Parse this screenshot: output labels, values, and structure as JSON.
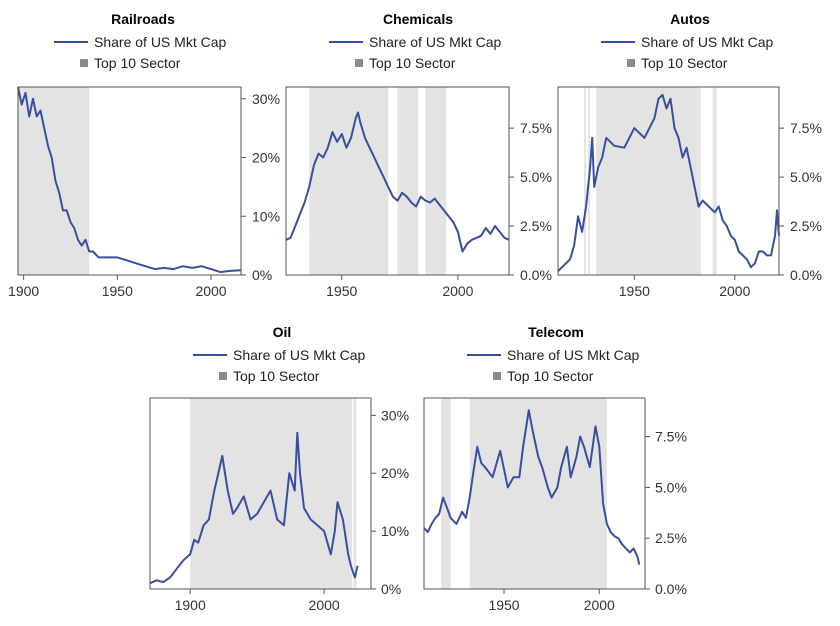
{
  "legend": {
    "line_label": "Share of US Mkt Cap",
    "shade_label": "Top 10 Sector"
  },
  "colors": {
    "line": "#3a4ea0",
    "shade": "#e3e3e3",
    "axis": "#555555",
    "text": "#222222"
  },
  "chart_data": [
    {
      "type": "line",
      "title": "Railroads",
      "xlabel": "",
      "ylabel": "",
      "xlim": [
        1897,
        2016
      ],
      "ylim": [
        0,
        0.32
      ],
      "x_ticks": [
        1900,
        1950,
        2000
      ],
      "y_ticks": [
        0,
        0.1,
        0.2,
        0.3
      ],
      "y_tick_labels": [
        "0%",
        "10%",
        "20%",
        "30%"
      ],
      "top10_periods": [
        [
          1897,
          1935
        ]
      ],
      "series": [
        {
          "name": "Share of US Mkt Cap",
          "x": [
            1897,
            1899,
            1901,
            1903,
            1905,
            1907,
            1909,
            1911,
            1913,
            1915,
            1917,
            1919,
            1921,
            1923,
            1925,
            1927,
            1929,
            1931,
            1933,
            1935,
            1937,
            1940,
            1945,
            1950,
            1955,
            1960,
            1965,
            1970,
            1975,
            1980,
            1985,
            1990,
            1995,
            2000,
            2005,
            2010,
            2016
          ],
          "y": [
            0.32,
            0.29,
            0.31,
            0.27,
            0.3,
            0.27,
            0.28,
            0.25,
            0.22,
            0.2,
            0.16,
            0.14,
            0.11,
            0.11,
            0.09,
            0.08,
            0.06,
            0.05,
            0.06,
            0.04,
            0.04,
            0.03,
            0.03,
            0.03,
            0.025,
            0.02,
            0.015,
            0.01,
            0.012,
            0.01,
            0.015,
            0.012,
            0.015,
            0.01,
            0.005,
            0.007,
            0.008
          ]
        }
      ]
    },
    {
      "type": "line",
      "title": "Chemicals",
      "xlabel": "",
      "ylabel": "",
      "xlim": [
        1926,
        2022
      ],
      "ylim": [
        0,
        0.096
      ],
      "x_ticks": [
        1950,
        2000
      ],
      "y_ticks": [
        0,
        0.025,
        0.05,
        0.075
      ],
      "y_tick_labels": [
        "0.0%",
        "2.5%",
        "5.0%",
        "7.5%"
      ],
      "top10_periods": [
        [
          1936,
          1970
        ],
        [
          1974,
          1983
        ],
        [
          1986,
          1995
        ]
      ],
      "series": [
        {
          "name": "Share of US Mkt Cap",
          "x": [
            1926,
            1928,
            1930,
            1932,
            1934,
            1936,
            1938,
            1940,
            1942,
            1944,
            1946,
            1948,
            1950,
            1952,
            1954,
            1956,
            1957,
            1958,
            1960,
            1962,
            1964,
            1966,
            1968,
            1970,
            1972,
            1974,
            1976,
            1978,
            1980,
            1982,
            1984,
            1986,
            1988,
            1990,
            1992,
            1994,
            1996,
            1998,
            2000,
            2002,
            2004,
            2006,
            2008,
            2010,
            2012,
            2014,
            2016,
            2018,
            2020,
            2022
          ],
          "y": [
            0.018,
            0.019,
            0.025,
            0.031,
            0.037,
            0.045,
            0.056,
            0.062,
            0.06,
            0.065,
            0.073,
            0.068,
            0.072,
            0.065,
            0.07,
            0.08,
            0.083,
            0.078,
            0.07,
            0.065,
            0.06,
            0.055,
            0.05,
            0.045,
            0.04,
            0.038,
            0.042,
            0.04,
            0.037,
            0.035,
            0.04,
            0.038,
            0.037,
            0.039,
            0.036,
            0.033,
            0.03,
            0.027,
            0.022,
            0.012,
            0.016,
            0.018,
            0.019,
            0.02,
            0.024,
            0.021,
            0.025,
            0.022,
            0.019,
            0.018
          ]
        }
      ]
    },
    {
      "type": "line",
      "title": "Autos",
      "xlabel": "",
      "ylabel": "",
      "xlim": [
        1912,
        2022
      ],
      "ylim": [
        0,
        0.096
      ],
      "x_ticks": [
        1950,
        2000
      ],
      "y_ticks": [
        0,
        0.025,
        0.05,
        0.075
      ],
      "y_tick_labels": [
        "0.0%",
        "2.5%",
        "5.0%",
        "7.5%"
      ],
      "top10_periods": [
        [
          1925,
          1926
        ],
        [
          1927,
          1928
        ],
        [
          1931,
          1983
        ],
        [
          1989,
          1991
        ]
      ],
      "series": [
        {
          "name": "Share of US Mkt Cap",
          "x": [
            1912,
            1914,
            1916,
            1918,
            1920,
            1922,
            1924,
            1926,
            1928,
            1929,
            1930,
            1932,
            1934,
            1936,
            1940,
            1945,
            1950,
            1955,
            1960,
            1962,
            1964,
            1966,
            1968,
            1970,
            1972,
            1974,
            1976,
            1978,
            1980,
            1982,
            1984,
            1986,
            1988,
            1990,
            1992,
            1994,
            1996,
            1998,
            2000,
            2002,
            2004,
            2006,
            2008,
            2010,
            2012,
            2014,
            2016,
            2018,
            2020,
            2021,
            2022
          ],
          "y": [
            0.002,
            0.004,
            0.006,
            0.008,
            0.015,
            0.03,
            0.022,
            0.035,
            0.055,
            0.07,
            0.045,
            0.055,
            0.06,
            0.07,
            0.066,
            0.065,
            0.075,
            0.07,
            0.08,
            0.09,
            0.092,
            0.085,
            0.09,
            0.075,
            0.07,
            0.06,
            0.065,
            0.055,
            0.045,
            0.035,
            0.038,
            0.036,
            0.034,
            0.032,
            0.035,
            0.028,
            0.025,
            0.02,
            0.018,
            0.012,
            0.01,
            0.008,
            0.004,
            0.006,
            0.012,
            0.012,
            0.01,
            0.01,
            0.02,
            0.033,
            0.02
          ]
        }
      ]
    },
    {
      "type": "line",
      "title": "Oil",
      "xlabel": "",
      "ylabel": "",
      "xlim": [
        1870,
        2035
      ],
      "ylim": [
        0,
        0.33
      ],
      "x_ticks": [
        1900,
        2000
      ],
      "y_ticks": [
        0,
        0.1,
        0.2,
        0.3
      ],
      "y_tick_labels": [
        "0%",
        "10%",
        "20%",
        "30%"
      ],
      "top10_periods": [
        [
          1900,
          2021
        ],
        [
          2022,
          2024
        ]
      ],
      "series": [
        {
          "name": "Share of US Mkt Cap",
          "x": [
            1870,
            1875,
            1880,
            1885,
            1890,
            1895,
            1900,
            1903,
            1906,
            1910,
            1914,
            1918,
            1920,
            1924,
            1928,
            1932,
            1935,
            1940,
            1945,
            1950,
            1955,
            1960,
            1965,
            1970,
            1974,
            1978,
            1980,
            1982,
            1985,
            1990,
            1995,
            2000,
            2005,
            2008,
            2010,
            2014,
            2018,
            2020,
            2023,
            2025
          ],
          "y": [
            0.01,
            0.015,
            0.012,
            0.02,
            0.035,
            0.05,
            0.06,
            0.085,
            0.08,
            0.11,
            0.12,
            0.17,
            0.19,
            0.23,
            0.17,
            0.13,
            0.14,
            0.16,
            0.12,
            0.13,
            0.15,
            0.17,
            0.12,
            0.11,
            0.2,
            0.17,
            0.27,
            0.2,
            0.14,
            0.12,
            0.11,
            0.1,
            0.06,
            0.1,
            0.15,
            0.12,
            0.06,
            0.04,
            0.02,
            0.04
          ]
        }
      ]
    },
    {
      "type": "line",
      "title": "Telecom",
      "xlabel": "",
      "ylabel": "",
      "xlim": [
        1908,
        2024
      ],
      "ylim": [
        0,
        0.094
      ],
      "x_ticks": [
        1950,
        2000
      ],
      "y_ticks": [
        0,
        0.025,
        0.05,
        0.075
      ],
      "y_tick_labels": [
        "0.0%",
        "2.5%",
        "5.0%",
        "7.5%"
      ],
      "top10_periods": [
        [
          1917,
          1922
        ],
        [
          1932,
          2004
        ]
      ],
      "series": [
        {
          "name": "Share of US Mkt Cap",
          "x": [
            1908,
            1910,
            1912,
            1914,
            1916,
            1918,
            1920,
            1922,
            1925,
            1928,
            1930,
            1932,
            1934,
            1936,
            1938,
            1940,
            1944,
            1948,
            1952,
            1955,
            1958,
            1960,
            1963,
            1965,
            1968,
            1970,
            1973,
            1975,
            1978,
            1980,
            1983,
            1985,
            1988,
            1990,
            1992,
            1995,
            1998,
            2000,
            2002,
            2004,
            2006,
            2008,
            2010,
            2012,
            2014,
            2016,
            2018,
            2020,
            2021
          ],
          "y": [
            0.03,
            0.028,
            0.032,
            0.035,
            0.037,
            0.045,
            0.04,
            0.035,
            0.032,
            0.038,
            0.035,
            0.045,
            0.058,
            0.07,
            0.062,
            0.06,
            0.055,
            0.068,
            0.05,
            0.055,
            0.055,
            0.07,
            0.088,
            0.078,
            0.065,
            0.06,
            0.05,
            0.045,
            0.05,
            0.06,
            0.07,
            0.055,
            0.065,
            0.075,
            0.07,
            0.06,
            0.08,
            0.07,
            0.042,
            0.032,
            0.028,
            0.026,
            0.025,
            0.022,
            0.02,
            0.018,
            0.02,
            0.016,
            0.012
          ]
        }
      ]
    }
  ]
}
